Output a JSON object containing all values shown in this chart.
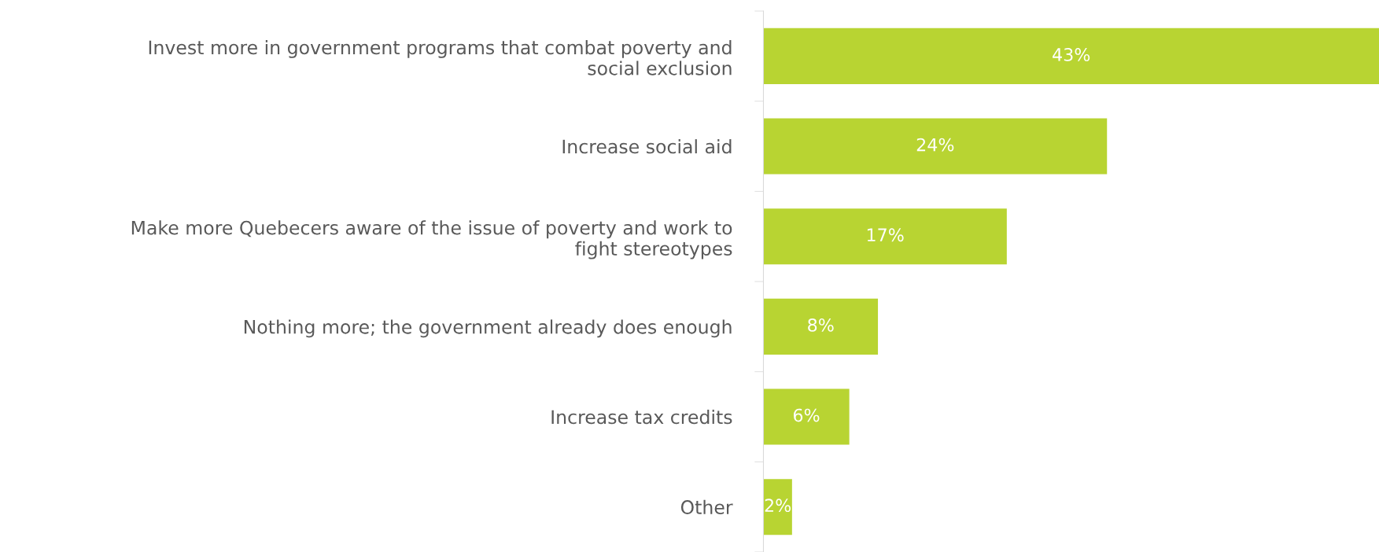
{
  "chart_data": {
    "type": "bar",
    "orientation": "horizontal",
    "categories": [
      "Invest more in government programs that combat poverty and\nsocial exclusion",
      "Increase social aid",
      "Make more Quebecers aware of the issue of poverty and work to\nfight stereotypes",
      "Nothing more; the government already does enough",
      "Increase tax credits",
      "Other"
    ],
    "values": [
      43,
      24,
      17,
      8,
      6,
      2
    ],
    "value_labels": [
      "43%",
      "24%",
      "17%",
      "8%",
      "6%",
      "2%"
    ],
    "color": "#b8d432"
  }
}
